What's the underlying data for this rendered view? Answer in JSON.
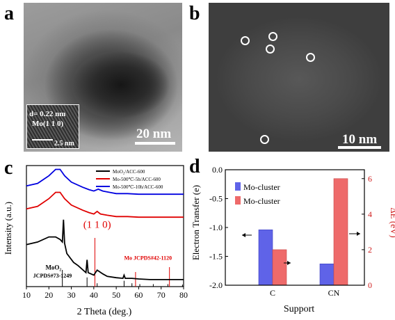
{
  "panels": {
    "a": {
      "letter": "a",
      "inset_lines": [
        "d= 0.22 nm",
        "Mo(1 1 0)"
      ],
      "inset_scale": "2.5 nm",
      "scale": "20 nm"
    },
    "b": {
      "letter": "b",
      "scale": "10 nm",
      "markers": 5
    },
    "c": {
      "letter": "c"
    },
    "d": {
      "letter": "d"
    }
  },
  "chart_data": [
    {
      "type": "line",
      "panel": "c",
      "xlabel": "2 Theta (deg.)",
      "ylabel": "Intensity (a.u.)",
      "xlim": [
        10,
        80
      ],
      "xticks": [
        10,
        20,
        30,
        40,
        50,
        60,
        70,
        80
      ],
      "series": [
        {
          "name": "MoO₂/ACC-600",
          "color": "#000000",
          "x": [
            10,
            15,
            20,
            23,
            25,
            26,
            26.5,
            27,
            28,
            31,
            33,
            36.5,
            37,
            37.5,
            40,
            41.5,
            44,
            46,
            50,
            53,
            53.5,
            54,
            57,
            60,
            65,
            70,
            75,
            80
          ],
          "y": [
            0.66,
            0.7,
            0.78,
            0.78,
            0.74,
            0.7,
            1.05,
            0.68,
            0.52,
            0.38,
            0.33,
            0.22,
            0.42,
            0.22,
            0.18,
            0.26,
            0.2,
            0.16,
            0.14,
            0.13,
            0.18,
            0.13,
            0.13,
            0.12,
            0.11,
            0.11,
            0.11,
            0.11
          ]
        },
        {
          "name": "Mo-500℃-5h/ACC-600",
          "color": "#e00000",
          "x": [
            10,
            15,
            20,
            23,
            25,
            27,
            30,
            35,
            38,
            40,
            41.5,
            43,
            46,
            50,
            55,
            60,
            65,
            70,
            75,
            80
          ],
          "y": [
            1.22,
            1.26,
            1.38,
            1.48,
            1.48,
            1.38,
            1.28,
            1.2,
            1.16,
            1.14,
            1.18,
            1.14,
            1.12,
            1.1,
            1.1,
            1.09,
            1.09,
            1.09,
            1.09,
            1.09
          ]
        },
        {
          "name": "Mo-500℃-10h/ACC-600",
          "color": "#0000e0",
          "x": [
            10,
            15,
            20,
            23,
            25,
            27,
            30,
            35,
            38,
            40,
            42,
            44,
            47,
            50,
            55,
            60,
            65,
            70,
            75,
            80
          ],
          "y": [
            1.58,
            1.62,
            1.74,
            1.84,
            1.84,
            1.74,
            1.64,
            1.56,
            1.52,
            1.5,
            1.53,
            1.5,
            1.48,
            1.46,
            1.46,
            1.45,
            1.45,
            1.45,
            1.45,
            1.45
          ]
        }
      ],
      "reference_moo2": {
        "label": "JCPDS#73-1249",
        "name": "MoO₂",
        "positions": [
          26.0,
          37.0,
          41.5,
          53.5,
          57.0,
          60.5,
          66.5,
          73.0,
          79.5
        ],
        "heights": [
          1.0,
          0.55,
          0.2,
          0.35,
          0.2,
          0.15,
          0.15,
          0.15,
          0.12
        ]
      },
      "reference_mo": {
        "label": "Mo JCPDS#42-1120",
        "positions": [
          40.5,
          58.6,
          73.7
        ],
        "heights": [
          1.0,
          0.3,
          0.4
        ]
      },
      "annotation": "(1 1 0)"
    },
    {
      "type": "bar",
      "panel": "d",
      "categories": [
        "C",
        "CN"
      ],
      "xlabel": "Support",
      "ylabel_left": "Electron Transfer (e)",
      "ylabel_right": "ΔE (eV)",
      "ylim_left": [
        0,
        -2.0
      ],
      "yticks_left": [
        0.0,
        -0.5,
        -1.0,
        -1.5,
        -2.0
      ],
      "ylim_right": [
        0,
        6.5
      ],
      "yticks_right": [
        0,
        2,
        4,
        6
      ],
      "series": [
        {
          "name": "Mo-cluster",
          "axis": "left",
          "color": "#5f63e8",
          "values": [
            -1.04,
            -1.63
          ]
        },
        {
          "name": "Mo-cluster",
          "axis": "right",
          "color": "#ee6a6a",
          "values": [
            2.0,
            6.0
          ]
        }
      ]
    }
  ]
}
